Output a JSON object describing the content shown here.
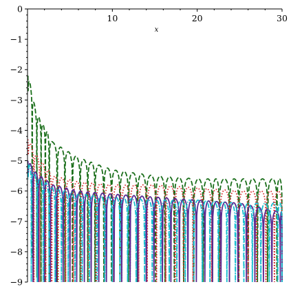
{
  "chart_data": {
    "type": "line",
    "title": "",
    "xlabel": "x",
    "ylabel": "",
    "xlim": [
      0,
      30
    ],
    "ylim": [
      -9,
      0
    ],
    "x_ticks": [
      {
        "value": 10,
        "label": "10"
      },
      {
        "value": 20,
        "label": "20"
      },
      {
        "value": 30,
        "label": "30"
      }
    ],
    "y_ticks": [
      {
        "value": 0,
        "label": "0"
      },
      {
        "value": -1,
        "label": "−1"
      },
      {
        "value": -2,
        "label": "−2"
      },
      {
        "value": -3,
        "label": "−3"
      },
      {
        "value": -4,
        "label": "−4"
      },
      {
        "value": -5,
        "label": "−5"
      },
      {
        "value": -6,
        "label": "−6"
      },
      {
        "value": -7,
        "label": "−7"
      },
      {
        "value": -8,
        "label": "−8"
      },
      {
        "value": -9,
        "label": "−9"
      }
    ],
    "grid": false,
    "legend": "none",
    "series": [
      {
        "color": "#1a6e1a",
        "style": "dashed",
        "envelope": [
          [
            0.1,
            -2.2
          ],
          [
            1,
            -3.4
          ],
          [
            3,
            -4.4
          ],
          [
            6,
            -4.9
          ],
          [
            10,
            -5.3
          ],
          [
            15,
            -5.5
          ],
          [
            20,
            -5.6
          ],
          [
            25,
            -5.6
          ],
          [
            30,
            -5.6
          ]
        ],
        "zeros": [
          0.55,
          1.1,
          1.6,
          2.1,
          2.55,
          3.5,
          4.4,
          5.3,
          6.2,
          7.1,
          7.95,
          9.0,
          9.9,
          10.9,
          11.9,
          12.95,
          14.0,
          15.1,
          16.2,
          17.3,
          18.4,
          19.6,
          20.7,
          21.8,
          22.6,
          23.8,
          24.9,
          26.0,
          27.1,
          28.3,
          29.4
        ]
      },
      {
        "color": "#d62728",
        "style": "dotted",
        "envelope": [
          [
            0.1,
            -4.3
          ],
          [
            1,
            -4.8
          ],
          [
            3,
            -5.5
          ],
          [
            6,
            -5.7
          ],
          [
            10,
            -5.8
          ],
          [
            15,
            -5.8
          ],
          [
            20,
            -5.9
          ],
          [
            25,
            -6.0
          ],
          [
            30,
            -6.0
          ]
        ],
        "zeros": [
          0.75,
          1.45,
          2.15,
          2.85,
          3.6,
          4.5,
          5.4,
          6.3,
          7.2,
          8.1,
          9.1,
          10.1,
          11.1,
          12.1,
          13.1,
          14.1,
          15.2,
          16.3,
          17.4,
          18.4,
          19.5,
          20.6,
          21.7,
          22.7,
          23.8,
          24.9,
          26.0,
          27.0,
          28.1,
          29.1
        ]
      },
      {
        "color": "#5a2a91",
        "style": "solid",
        "envelope": [
          [
            0.1,
            -5.0
          ],
          [
            1,
            -5.4
          ],
          [
            3,
            -5.8
          ],
          [
            6,
            -6.0
          ],
          [
            10,
            -6.1
          ],
          [
            15,
            -6.2
          ],
          [
            20,
            -6.3
          ],
          [
            25,
            -6.4
          ],
          [
            30,
            -6.7
          ]
        ],
        "zeros": [
          0.65,
          1.3,
          2.0,
          2.7,
          3.4,
          4.2,
          5.0,
          5.8,
          6.7,
          7.5,
          8.4,
          9.3,
          10.2,
          11.1,
          12.1,
          13.0,
          14.0,
          14.9,
          15.9,
          16.9,
          17.9,
          18.9,
          19.9,
          20.9,
          21.8,
          22.8,
          23.8,
          24.8,
          25.8,
          26.8,
          27.8,
          28.8,
          29.8
        ]
      },
      {
        "color": "#17becf",
        "style": "dashdot",
        "envelope": [
          [
            0.1,
            -5.1
          ],
          [
            1,
            -5.5
          ],
          [
            3,
            -5.9
          ],
          [
            6,
            -6.1
          ],
          [
            10,
            -6.2
          ],
          [
            15,
            -6.3
          ],
          [
            20,
            -6.3
          ],
          [
            25,
            -6.4
          ],
          [
            30,
            -6.4
          ]
        ],
        "zeros": [
          0.45,
          1.15,
          1.85,
          2.55,
          3.25,
          4.0,
          4.8,
          5.6,
          6.45,
          7.3,
          8.2,
          9.1,
          10.0,
          10.9,
          11.8,
          12.8,
          13.8,
          14.7,
          15.7,
          16.7,
          17.6,
          18.6,
          19.6,
          20.6,
          21.5,
          22.5,
          23.5,
          24.5,
          25.5,
          26.5,
          27.5,
          28.5,
          29.5
        ]
      }
    ]
  }
}
